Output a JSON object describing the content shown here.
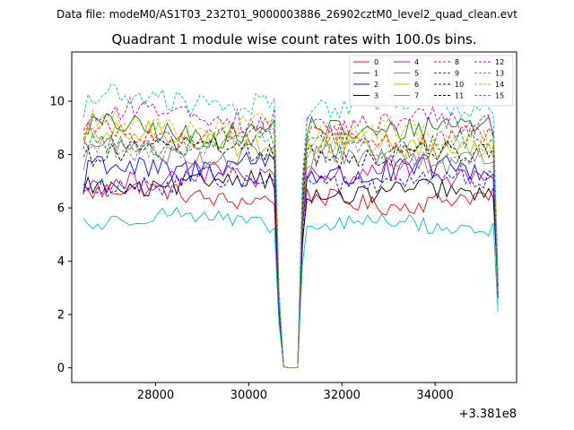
{
  "chart_data": {
    "type": "line",
    "suptitle": "Data file: modeM0/AS1T03_232T01_9000003886_26902cztM0_level2_quad_clean.evt",
    "title": "Quadrant 1 module wise count rates with 100.0s bins.",
    "xlabel": "",
    "ylabel": "",
    "x_offset_label": "+3.381e8",
    "xlim": [
      26200,
      35750
    ],
    "ylim": [
      -0.55,
      11.85
    ],
    "x_ticks": [
      28000,
      30000,
      32000,
      34000
    ],
    "x_tick_labels": [
      "28000",
      "30000",
      "32000",
      "34000"
    ],
    "y_ticks": [
      0,
      2,
      4,
      6,
      8,
      10
    ],
    "y_tick_labels": [
      "0",
      "2",
      "4",
      "6",
      "8",
      "10"
    ],
    "x_start": 26450,
    "x_step": 100,
    "gap": {
      "start_index": 42,
      "end_index": 47
    },
    "legend": {
      "position": "top-right",
      "columns": 4
    },
    "series": [
      {
        "name": "0",
        "color": "#ff0000",
        "dash": false,
        "base1": 6.5,
        "base2": 6.25,
        "amp": 0.35,
        "first": 6.9,
        "last": 3.0
      },
      {
        "name": "1",
        "color": "#008000",
        "dash": false,
        "base1": 8.9,
        "base2": 9.0,
        "amp": 0.45,
        "first": 8.8,
        "last": 3.2
      },
      {
        "name": "2",
        "color": "#0000ff",
        "dash": false,
        "base1": 7.6,
        "base2": 7.35,
        "amp": 0.5,
        "first": 6.5,
        "last": 2.6
      },
      {
        "name": "3",
        "color": "#000000",
        "dash": false,
        "base1": 6.9,
        "base2": 6.55,
        "amp": 0.35,
        "first": 6.6,
        "last": 3.0
      },
      {
        "name": "4",
        "color": "#bf00bf",
        "dash": false,
        "base1": 7.1,
        "base2": 7.3,
        "amp": 0.45,
        "first": 6.9,
        "last": 2.9
      },
      {
        "name": "5",
        "color": "#00bfbf",
        "dash": false,
        "base1": 5.55,
        "base2": 5.35,
        "amp": 0.3,
        "first": 5.6,
        "last": 2.1
      },
      {
        "name": "6",
        "color": "#bfbf00",
        "dash": false,
        "base1": 8.6,
        "base2": 8.3,
        "amp": 0.45,
        "first": 8.6,
        "last": 3.1
      },
      {
        "name": "7",
        "color": "#808080",
        "dash": false,
        "base1": 8.1,
        "base2": 7.8,
        "amp": 0.4,
        "first": 7.4,
        "last": 2.8
      },
      {
        "name": "8",
        "color": "#ff0000",
        "dash": true,
        "base1": 8.8,
        "base2": 8.6,
        "amp": 0.4,
        "first": 8.2,
        "last": 3.3
      },
      {
        "name": "9",
        "color": "#008000",
        "dash": true,
        "base1": 8.5,
        "base2": 8.4,
        "amp": 0.4,
        "first": 8.6,
        "last": 3.1
      },
      {
        "name": "10",
        "color": "#0000ff",
        "dash": true,
        "base1": 6.9,
        "base2": 7.0,
        "amp": 0.4,
        "first": 6.6,
        "last": 2.8
      },
      {
        "name": "11",
        "color": "#000000",
        "dash": true,
        "base1": 8.2,
        "base2": 8.0,
        "amp": 0.4,
        "first": 7.9,
        "last": 3.0
      },
      {
        "name": "12",
        "color": "#bf00bf",
        "dash": true,
        "base1": 9.5,
        "base2": 9.2,
        "amp": 0.45,
        "first": 8.9,
        "last": 3.4
      },
      {
        "name": "13",
        "color": "#00bfbf",
        "dash": true,
        "base1": 10.0,
        "base2": 9.9,
        "amp": 0.45,
        "first": 9.4,
        "last": 3.6
      },
      {
        "name": "14",
        "color": "#bfbf00",
        "dash": true,
        "base1": 9.1,
        "base2": 8.8,
        "amp": 0.45,
        "first": 8.6,
        "last": 3.2
      },
      {
        "name": "15",
        "color": "#808080",
        "dash": true,
        "base1": 8.3,
        "base2": 8.0,
        "amp": 0.4,
        "first": 7.9,
        "last": 2.9
      }
    ],
    "n_points": 90
  }
}
